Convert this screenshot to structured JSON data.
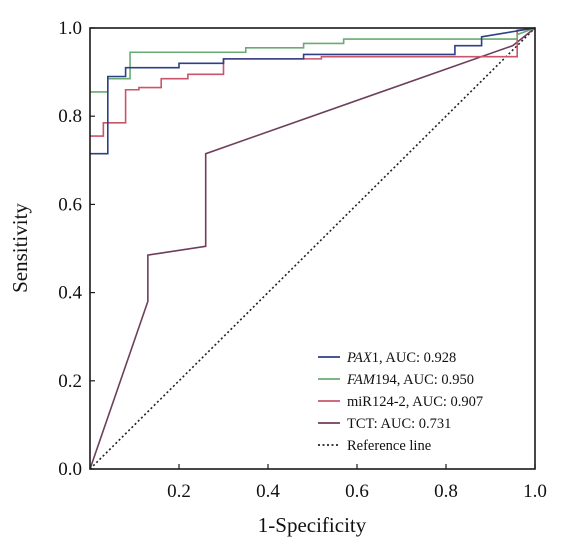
{
  "chart_data": {
    "type": "line",
    "title": "",
    "xlabel": "1-Specificity",
    "ylabel": "Sensitivity",
    "xlim": [
      0,
      1
    ],
    "ylim": [
      0,
      1
    ],
    "x_ticks": [
      "0.2",
      "0.4",
      "0.6",
      "0.8",
      "1.0"
    ],
    "y_ticks": [
      "0.0",
      "0.2",
      "0.4",
      "0.6",
      "0.8",
      "1.0"
    ],
    "grid": false,
    "legend_position": "bottom-right",
    "series": [
      {
        "name_prefix": "PAX",
        "name_suffix": "1, AUC: 0.928",
        "italic_prefix": true,
        "color": "#2f3f86",
        "x": [
          0,
          0.04,
          0.04,
          0.08,
          0.08,
          0.2,
          0.2,
          0.3,
          0.3,
          0.48,
          0.48,
          0.82,
          0.82,
          0.88,
          0.88,
          1
        ],
        "y": [
          0.715,
          0.715,
          0.89,
          0.89,
          0.91,
          0.91,
          0.92,
          0.92,
          0.93,
          0.93,
          0.94,
          0.94,
          0.96,
          0.96,
          0.98,
          1.0
        ]
      },
      {
        "name_prefix": "FAM",
        "name_suffix": "194, AUC: 0.950",
        "italic_prefix": true,
        "color": "#6aab72",
        "x": [
          0,
          0.04,
          0.04,
          0.09,
          0.09,
          0.35,
          0.35,
          0.48,
          0.48,
          0.57,
          0.57,
          0.96,
          0.96,
          1
        ],
        "y": [
          0.855,
          0.855,
          0.885,
          0.885,
          0.945,
          0.945,
          0.955,
          0.955,
          0.965,
          0.965,
          0.975,
          0.975,
          0.985,
          1.0
        ]
      },
      {
        "name_prefix": "",
        "name_suffix": "miR124-2, AUC: 0.907",
        "italic_prefix": false,
        "color": "#c8566a",
        "x": [
          0,
          0.03,
          0.03,
          0.08,
          0.08,
          0.11,
          0.11,
          0.16,
          0.16,
          0.22,
          0.22,
          0.3,
          0.3,
          0.52,
          0.52,
          0.96,
          0.96,
          1
        ],
        "y": [
          0.755,
          0.755,
          0.785,
          0.785,
          0.86,
          0.86,
          0.865,
          0.865,
          0.885,
          0.885,
          0.895,
          0.895,
          0.93,
          0.93,
          0.935,
          0.935,
          0.995,
          1.0
        ]
      },
      {
        "name_prefix": "",
        "name_suffix": "TCT: AUC: 0.731",
        "italic_prefix": false,
        "color": "#6d3f5c",
        "x": [
          0,
          0.13,
          0.13,
          0.26,
          0.26,
          0.95,
          1
        ],
        "y": [
          0,
          0.38,
          0.485,
          0.505,
          0.715,
          0.96,
          1.0
        ]
      }
    ],
    "reference_line": {
      "name": "Reference line",
      "color": "#222222",
      "x": [
        0,
        1
      ],
      "y": [
        0,
        1
      ]
    }
  }
}
